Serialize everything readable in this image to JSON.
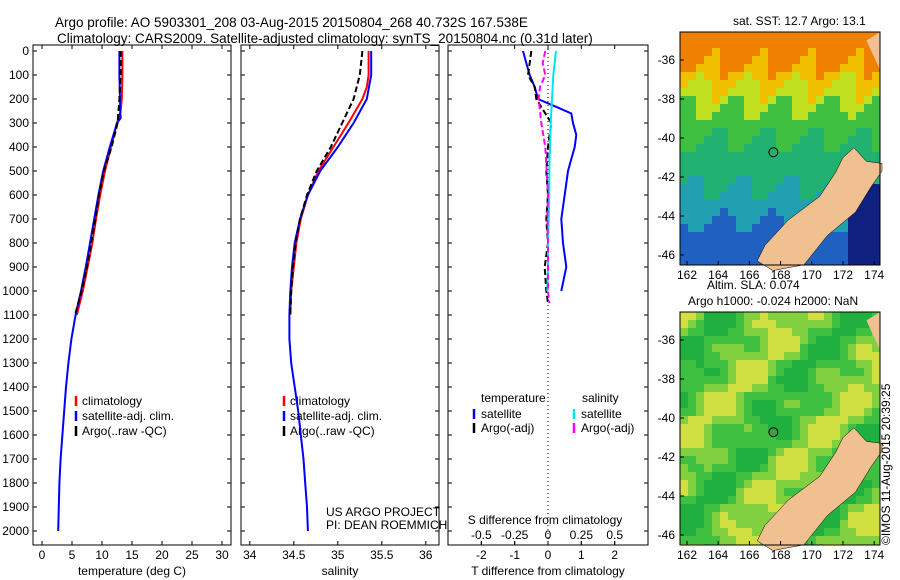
{
  "title_line1": "Argo profile: AO 5903301_208 03-Aug-2015 20150804_268 40.732S 167.538E",
  "title_line2": "Climatology: CARS2009. Satellite-adjusted climatology: synTS_20150804.nc (0.31d later)",
  "colors": {
    "climatology": "#ff0000",
    "satellite": "#0000ff",
    "argo": "#000000",
    "sal_sat": "#00e5ee",
    "sal_argo": "#ff00ff"
  },
  "chart_data": [
    {
      "type": "line",
      "name": "temperature",
      "xlabel": "temperature (deg C)",
      "xlim": [
        -1.5,
        31.5
      ],
      "ylim": [
        2100,
        0
      ],
      "xticks": [
        "0",
        "5",
        "10",
        "15",
        "20",
        "25",
        "30"
      ],
      "xtick_values": [
        0,
        5,
        10,
        15,
        20,
        25,
        30
      ],
      "yticks": [
        "0",
        "100",
        "200",
        "300",
        "400",
        "500",
        "600",
        "700",
        "800",
        "900",
        "1000",
        "1100",
        "1200",
        "1300",
        "1400",
        "1500",
        "1600",
        "1700",
        "1800",
        "1900",
        "2000"
      ],
      "legend": [
        "climatology",
        "satellite-adj. clim.",
        "Argo(..raw -QC)"
      ],
      "series": [
        {
          "name": "climatology",
          "color": "#ff0000",
          "depth": [
            0,
            100,
            200,
            250,
            300,
            400,
            500,
            600,
            700,
            800,
            900,
            1000,
            1100
          ],
          "values": [
            13.4,
            13.4,
            13.3,
            13.1,
            12.5,
            11.5,
            10.5,
            9.7,
            9.0,
            8.4,
            7.6,
            6.8,
            5.8
          ]
        },
        {
          "name": "satellite-adj. clim.",
          "color": "#0000ff",
          "depth": [
            0,
            100,
            200,
            280,
            300,
            400,
            500,
            600,
            700,
            800,
            900,
            1000,
            1100,
            1200,
            1300,
            1400,
            1500,
            1600,
            1700,
            1800,
            1900,
            2000
          ],
          "values": [
            12.9,
            12.9,
            13.0,
            13.1,
            12.5,
            11.3,
            10.2,
            9.4,
            8.7,
            8.0,
            7.3,
            6.5,
            5.6,
            4.9,
            4.4,
            4.0,
            3.7,
            3.4,
            3.1,
            2.9,
            2.8,
            2.7
          ]
        },
        {
          "name": "Argo(..raw -QC)",
          "color": "#000000",
          "dash": true,
          "depth": [
            0,
            100,
            200,
            300,
            400,
            500,
            600,
            700,
            800,
            900,
            1000,
            1100
          ],
          "values": [
            13.1,
            13.1,
            12.9,
            12.6,
            11.6,
            10.3,
            9.5,
            8.9,
            8.2,
            7.5,
            6.6,
            5.5
          ]
        }
      ]
    },
    {
      "type": "line",
      "name": "salinity",
      "xlabel": "salinity",
      "xlim": [
        33.9,
        36.15
      ],
      "ylim": [
        2100,
        0
      ],
      "xticks": [
        "34",
        "34.5",
        "35",
        "35.5",
        "36"
      ],
      "xtick_values": [
        34,
        34.5,
        35,
        35.5,
        36
      ],
      "legend": [
        "climatology",
        "satellite-adj. clim.",
        "Argo(..raw -QC)"
      ],
      "annotation": [
        "US ARGO PROJECT",
        "PI: DEAN ROEMMICH"
      ],
      "series": [
        {
          "name": "climatology",
          "color": "#ff0000",
          "depth": [
            0,
            100,
            150,
            200,
            300,
            400,
            500,
            600,
            700,
            800,
            900,
            1000,
            1100
          ],
          "values": [
            35.35,
            35.35,
            35.33,
            35.28,
            35.12,
            34.95,
            34.78,
            34.66,
            34.58,
            34.53,
            34.5,
            34.47,
            34.46
          ]
        },
        {
          "name": "satellite-adj. clim.",
          "color": "#0000ff",
          "depth": [
            0,
            100,
            200,
            300,
            400,
            500,
            600,
            700,
            800,
            900,
            1000,
            1100,
            1200,
            1300,
            1400,
            1500,
            1600,
            1700,
            1800,
            1900,
            2000
          ],
          "values": [
            35.38,
            35.38,
            35.33,
            35.18,
            35.0,
            34.8,
            34.66,
            34.57,
            34.51,
            34.48,
            34.46,
            34.45,
            34.45,
            34.47,
            34.51,
            34.55,
            34.58,
            34.61,
            34.63,
            34.65,
            34.66
          ]
        },
        {
          "name": "Argo(..raw -QC)",
          "color": "#000000",
          "dash": true,
          "depth": [
            0,
            100,
            200,
            300,
            400,
            500,
            600,
            700,
            800,
            900,
            1000,
            1100
          ],
          "values": [
            35.28,
            35.25,
            35.18,
            35.05,
            34.92,
            34.76,
            34.65,
            34.57,
            34.52,
            34.49,
            34.47,
            34.46
          ]
        }
      ]
    },
    {
      "type": "line",
      "name": "difference",
      "xlabel": "T difference from climatology",
      "x2label": "S difference from climatology",
      "xlim": [
        -3,
        3
      ],
      "ylim": [
        2100,
        0
      ],
      "xticks": [
        "-2",
        "-1",
        "0",
        "1",
        "2"
      ],
      "xtick_values": [
        -2,
        -1,
        0,
        1,
        2
      ],
      "x2ticks": [
        "-0.5",
        "-0.25",
        "0",
        "0.25",
        "0.5"
      ],
      "x2tick_values": [
        -0.5,
        -0.25,
        0,
        0.25,
        0.5
      ],
      "legend_titles": [
        "temperature",
        "salinity"
      ],
      "legend": [
        "satellite",
        "Argo(-adj)",
        "satellite",
        "Argo(-adj)"
      ],
      "series": [
        {
          "name": "T satellite",
          "color": "#0000ff",
          "units": "T",
          "depth": [
            0,
            50,
            100,
            150,
            200,
            230,
            260,
            300,
            350,
            400,
            450,
            500,
            600,
            700,
            800,
            900,
            1000
          ],
          "values": [
            -0.75,
            -0.65,
            -0.55,
            -0.4,
            -0.3,
            0.2,
            0.7,
            0.75,
            0.85,
            0.8,
            0.7,
            0.6,
            0.5,
            0.4,
            0.45,
            0.55,
            0.4
          ]
        },
        {
          "name": "T Argo(-adj)",
          "color": "#000000",
          "dash": true,
          "units": "T",
          "depth": [
            0,
            50,
            100,
            150,
            200,
            300,
            400,
            500,
            600,
            700,
            800,
            900,
            1000,
            1050
          ],
          "values": [
            -0.5,
            -0.55,
            -0.6,
            -0.4,
            -0.35,
            0.1,
            0.0,
            -0.05,
            0.0,
            -0.05,
            0.0,
            -0.1,
            -0.05,
            0.0
          ]
        },
        {
          "name": "S satellite",
          "color": "#00e5ee",
          "units": "S",
          "depth": [
            0,
            50,
            100,
            200,
            300,
            400,
            500,
            600,
            700,
            800,
            900,
            1000
          ],
          "values": [
            0.06,
            0.05,
            0.04,
            0.03,
            0.02,
            0.015,
            0.01,
            0.01,
            0.005,
            0.0,
            0.0,
            -0.005
          ]
        },
        {
          "name": "S Argo(-adj)",
          "color": "#ff00ff",
          "dash": true,
          "units": "S",
          "depth": [
            0,
            50,
            100,
            150,
            200,
            300,
            400,
            500,
            600,
            700,
            800,
            900,
            1000,
            1050
          ],
          "values": [
            -0.02,
            -0.04,
            -0.02,
            -0.06,
            -0.07,
            -0.05,
            -0.02,
            -0.01,
            0.0,
            -0.005,
            0.0,
            0.0,
            0.0,
            0.01
          ]
        }
      ]
    }
  ],
  "map_sst": {
    "title": "sat. SST: 12.7 Argo: 13.1",
    "lat_ticks": [
      "-36",
      "-38",
      "-40",
      "-42",
      "-44",
      "-46"
    ],
    "lon_ticks": [
      "162",
      "164",
      "166",
      "168",
      "170",
      "172",
      "174"
    ],
    "argo_lat": -40.732,
    "argo_lon": 167.538
  },
  "map_sla": {
    "title1": "Altim. SLA: 0.074",
    "title2": "Argo h1000: -0.024 h2000: NaN",
    "lat_ticks": [
      "-36",
      "-38",
      "-40",
      "-42",
      "-44",
      "-46"
    ],
    "lon_ticks": [
      "162",
      "164",
      "166",
      "168",
      "170",
      "172",
      "174"
    ]
  },
  "credit": "©IMOS 11-Aug-2015 20:39:25"
}
